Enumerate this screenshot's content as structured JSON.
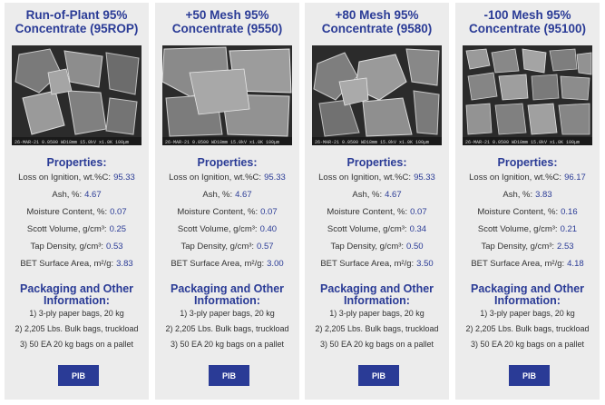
{
  "products": [
    {
      "title_line1": "Run-of-Plant 95%",
      "title_line2": "Concentrate (95ROP)",
      "image_icon": "graphite-sem-micrograph",
      "caption": "26-MAR-21    0.0500    WD18mm 15.0kV x1.0K    100μm",
      "properties_heading": "Properties:",
      "properties": [
        {
          "label": "Loss on Ignition, wt.%C:",
          "value": "95.33"
        },
        {
          "label": "Ash, %:",
          "value": "4.67"
        },
        {
          "label": "Moisture Content, %:",
          "value": "0.07"
        },
        {
          "label": "Scott Volume, g/cm³:",
          "value": "0.25"
        },
        {
          "label": "Tap Density, g/cm³:",
          "value": "0.53"
        },
        {
          "label": "BET Surface Area, m²/g:",
          "value": "3.83"
        }
      ],
      "packaging_heading_line1": "Packaging and Other",
      "packaging_heading_line2": "Information:",
      "packaging": [
        "1) 3-ply paper bags, 20 kg",
        "2) 2,205 Lbs. Bulk bags, truckload",
        "3) 50 EA 20 kg bags on a pallet"
      ],
      "button_label": "PIB"
    },
    {
      "title_line1": "+50 Mesh 95%",
      "title_line2": "Concentrate (9550)",
      "image_icon": "graphite-sem-micrograph",
      "caption": "26-MAR-21    0.0500    WD18mm 15.0kV x1.0K    100μm",
      "properties_heading": "Properties:",
      "properties": [
        {
          "label": "Loss on Ignition, wt.%C:",
          "value": "95.33"
        },
        {
          "label": "Ash, %:",
          "value": "4.67"
        },
        {
          "label": "Moisture Content, %:",
          "value": "0.07"
        },
        {
          "label": "Scott Volume, g/cm³:",
          "value": "0.40"
        },
        {
          "label": "Tap Density, g/cm³:",
          "value": "0.57"
        },
        {
          "label": "BET Surface Area, m²/g:",
          "value": "3.00"
        }
      ],
      "packaging_heading_line1": "Packaging and Other",
      "packaging_heading_line2": "Information:",
      "packaging": [
        "1) 3-ply paper bags, 20 kg",
        "2) 2,205 Lbs. Bulk bags, truckload",
        "3) 50 EA 20 kg bags on a pallet"
      ],
      "button_label": "PIB"
    },
    {
      "title_line1": "+80 Mesh 95%",
      "title_line2": "Concentrate (9580)",
      "image_icon": "graphite-sem-micrograph",
      "caption": "26-MAR-21    0.0500    WD18mm 15.0kV x1.0K    100μm",
      "properties_heading": "Properties:",
      "properties": [
        {
          "label": "Loss on Ignition, wt.%C:",
          "value": "95.33"
        },
        {
          "label": "Ash, %:",
          "value": "4.67"
        },
        {
          "label": "Moisture Content, %:",
          "value": "0.07"
        },
        {
          "label": "Scott Volume, g/cm³:",
          "value": "0.34"
        },
        {
          "label": "Tap Density, g/cm³:",
          "value": "0.50"
        },
        {
          "label": "BET Surface Area, m²/g:",
          "value": "3.50"
        }
      ],
      "packaging_heading_line1": "Packaging and Other",
      "packaging_heading_line2": "Information:",
      "packaging": [
        "1) 3-ply paper bags, 20 kg",
        "2) 2,205 Lbs. Bulk bags, truckload",
        "3) 50 EA 20 kg bags on a pallet"
      ],
      "button_label": "PIB"
    },
    {
      "title_line1": "-100 Mesh 95%",
      "title_line2": "Concentrate (95100)",
      "image_icon": "graphite-sem-micrograph",
      "caption": "26-MAR-21    0.0500    WD18mm 15.0kV x1.0K    100μm",
      "properties_heading": "Properties:",
      "properties": [
        {
          "label": "Loss on Ignition, wt.%C:",
          "value": "96.17"
        },
        {
          "label": "Ash, %:",
          "value": "3.83"
        },
        {
          "label": "Moisture Content, %:",
          "value": "0.16"
        },
        {
          "label": "Scott Volume, g/cm³:",
          "value": "0.21"
        },
        {
          "label": "Tap Density, g/cm³:",
          "value": "2.53"
        },
        {
          "label": "BET Surface Area, m²/g:",
          "value": "4.18"
        }
      ],
      "packaging_heading_line1": "Packaging and Other",
      "packaging_heading_line2": "Information:",
      "packaging": [
        "1) 3-ply paper bags, 20 kg",
        "2) 2,205 Lbs. Bulk bags, truckload",
        "3) 50 EA 20 kg bags on a pallet"
      ],
      "button_label": "PIB"
    }
  ],
  "colors": {
    "accent": "#2a3b96",
    "card_background": "#ececec",
    "micrograph_background": "#2b2b2b"
  }
}
